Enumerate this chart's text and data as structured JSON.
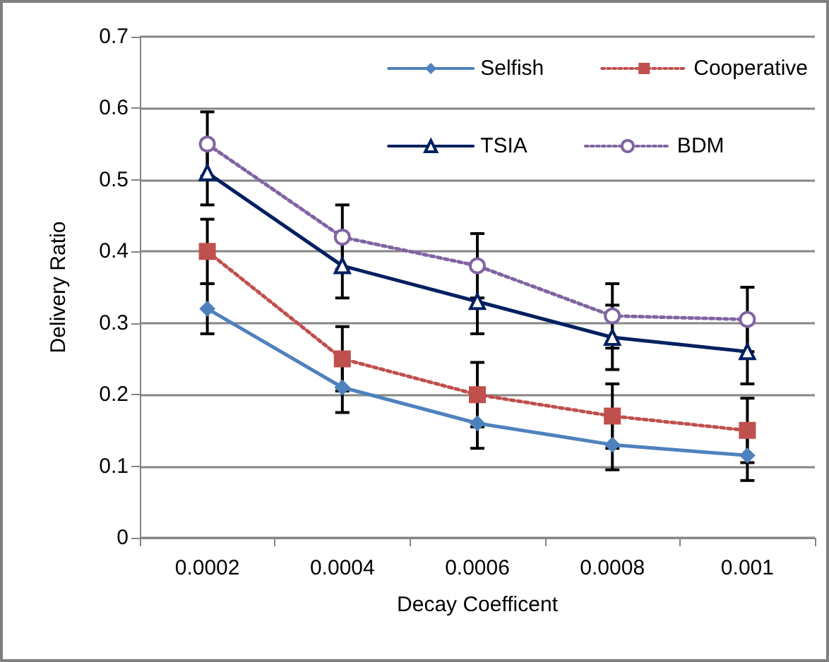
{
  "chart_data": {
    "type": "line",
    "xlabel": "Decay Coefficent",
    "ylabel": "Delivery Ratio",
    "categories": [
      "0.0002",
      "0.0004",
      "0.0006",
      "0.0008",
      "0.001"
    ],
    "series": [
      {
        "name": "Selfish",
        "color": "#4f81bd",
        "marker": "diamond",
        "line_style": "solid",
        "values": [
          0.32,
          0.21,
          0.16,
          0.13,
          0.115
        ],
        "errors": [
          0.035,
          0.035,
          0.035,
          0.035,
          0.035
        ]
      },
      {
        "name": "Cooperative",
        "color": "#c0504d",
        "marker": "square",
        "line_style": "dotted",
        "values": [
          0.4,
          0.25,
          0.2,
          0.17,
          0.15
        ],
        "errors": [
          0.045,
          0.045,
          0.045,
          0.045,
          0.045
        ]
      },
      {
        "name": "TSIA",
        "color": "#002060",
        "marker": "triangle",
        "line_style": "solid",
        "values": [
          0.51,
          0.38,
          0.33,
          0.28,
          0.26
        ],
        "errors": [
          0.045,
          0.045,
          0.045,
          0.045,
          0.045
        ]
      },
      {
        "name": "BDM",
        "color": "#8064a2",
        "marker": "circle",
        "line_style": "dotted",
        "values": [
          0.55,
          0.42,
          0.38,
          0.31,
          0.305
        ],
        "errors": [
          0.045,
          0.045,
          0.045,
          0.045,
          0.045
        ]
      }
    ],
    "ylim": [
      0,
      0.7
    ],
    "yticks": [
      0,
      0.1,
      0.2,
      0.3,
      0.4,
      0.5,
      0.6,
      0.7
    ],
    "grid": "y",
    "legend": "top right"
  }
}
